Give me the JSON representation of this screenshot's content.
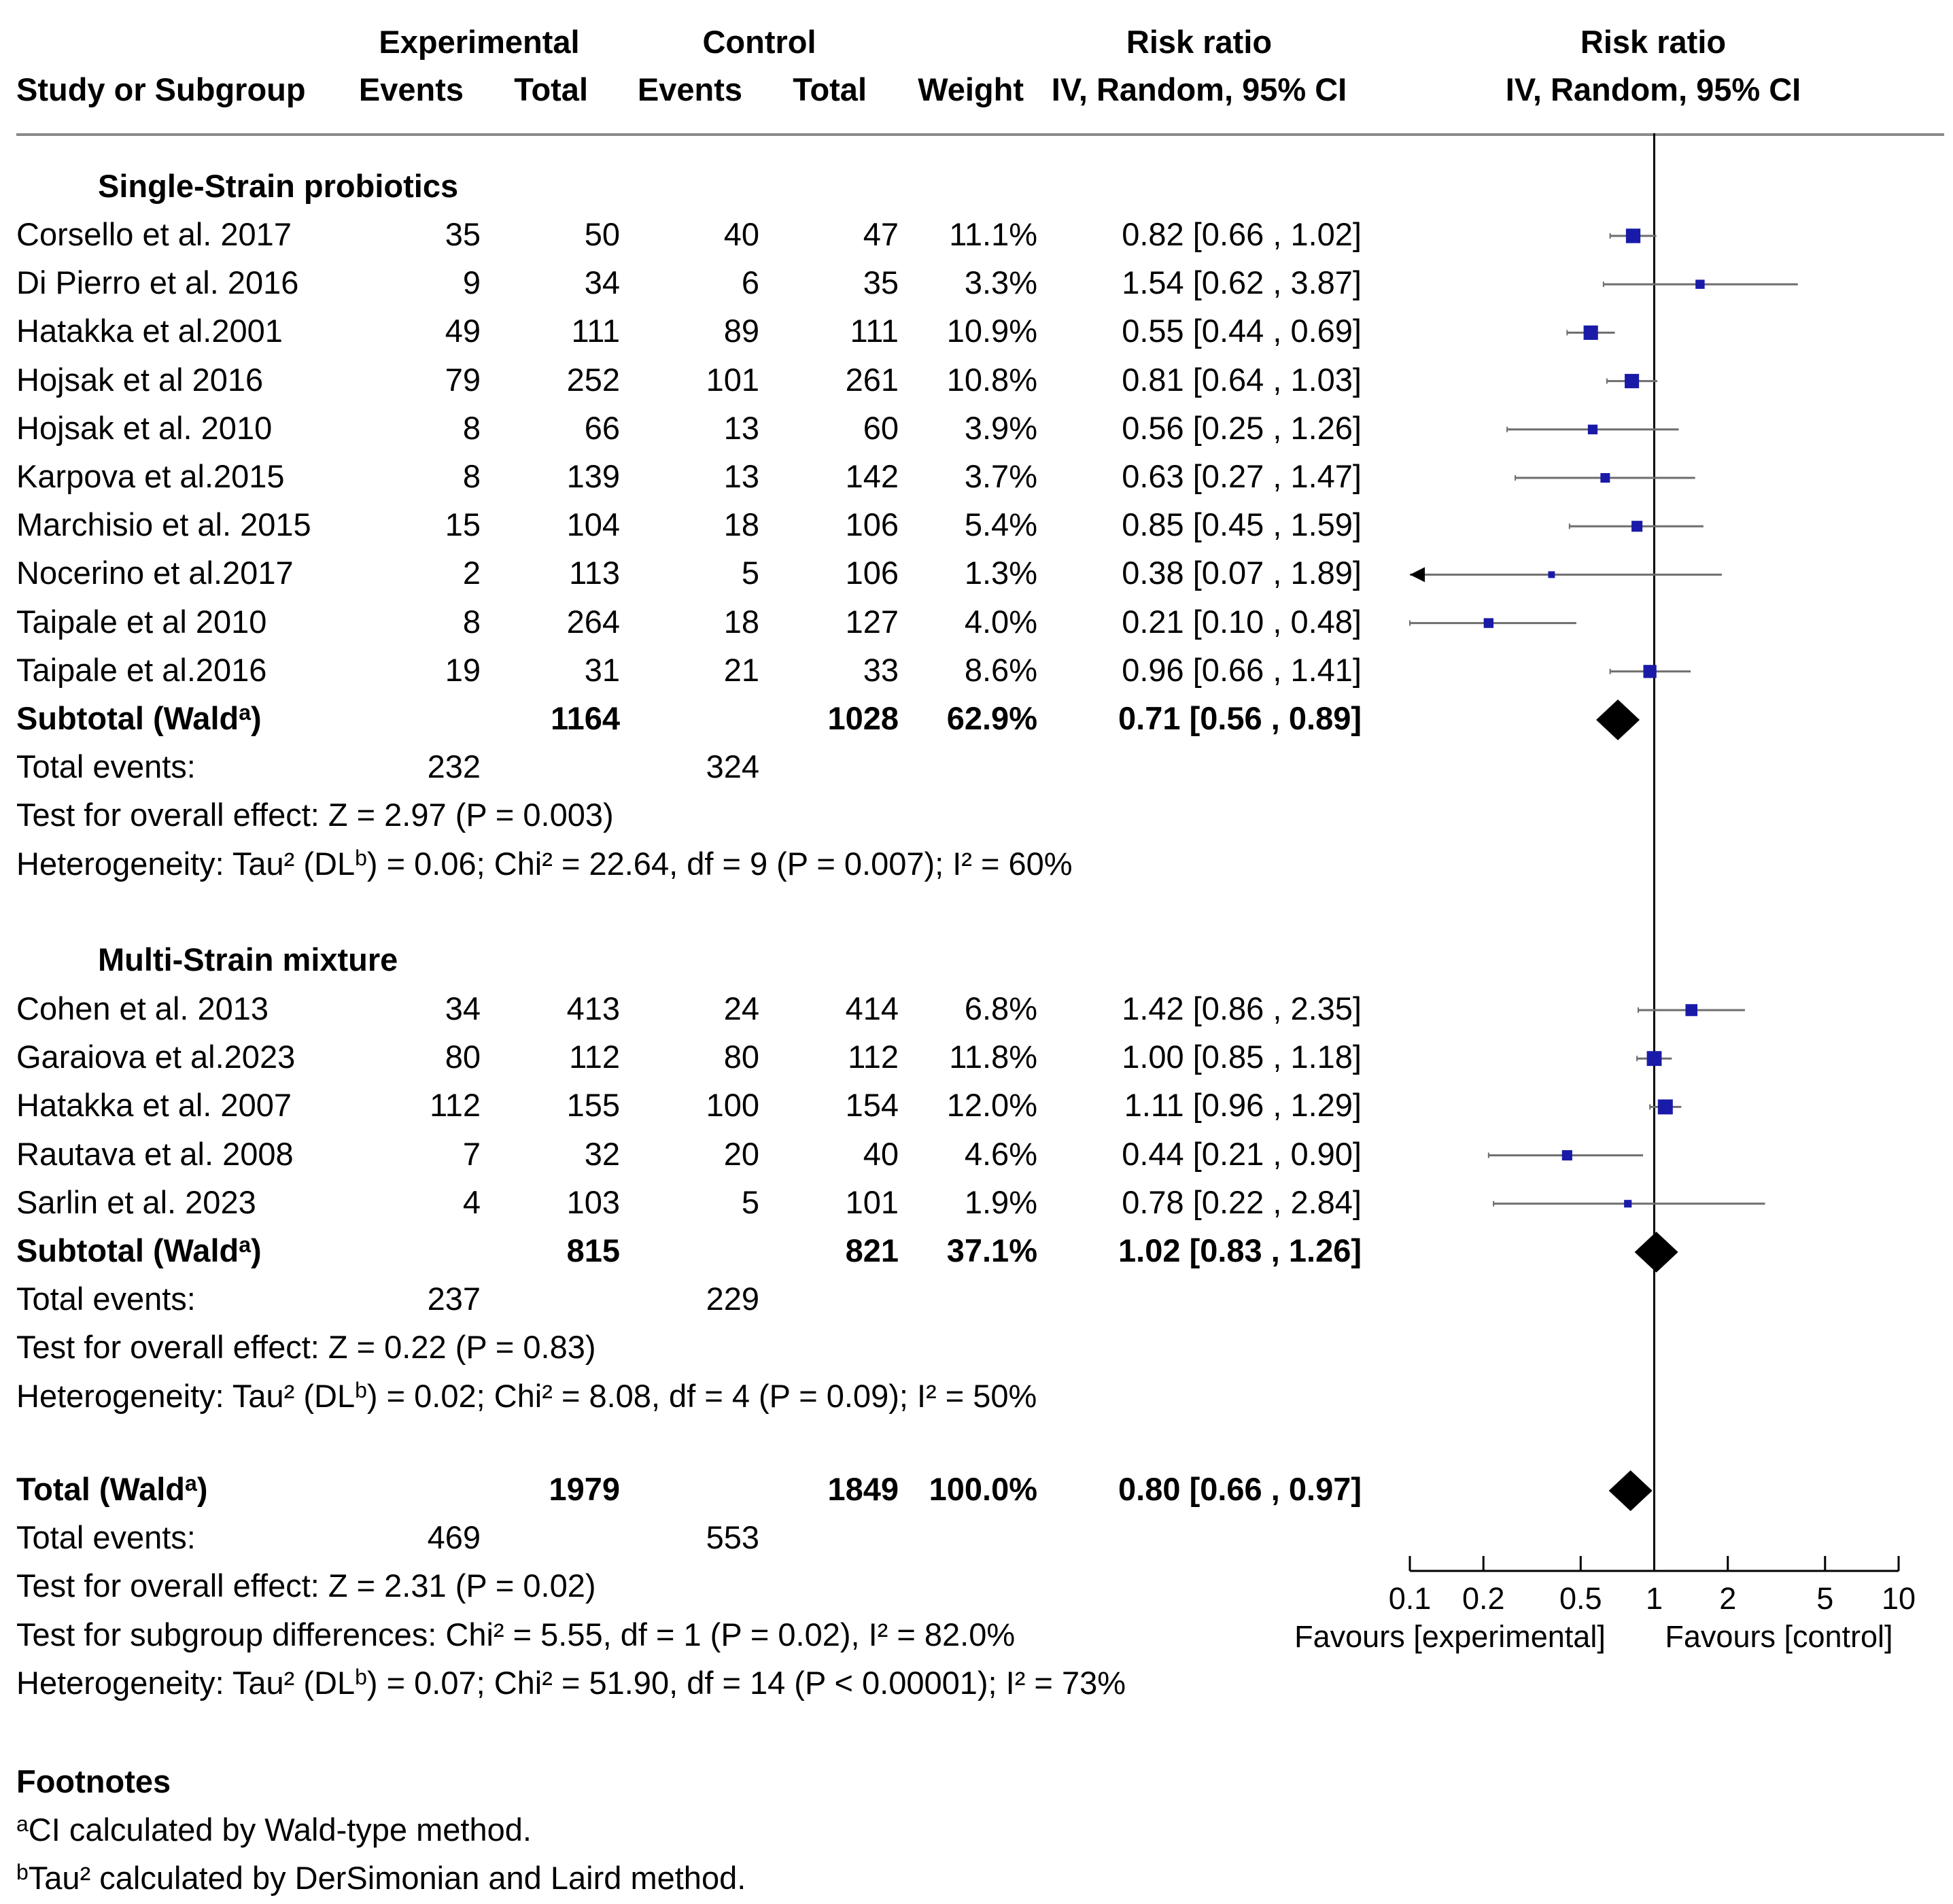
{
  "header": {
    "experimental": "Experimental",
    "control": "Control",
    "rr_group": "Risk ratio",
    "study": "Study or Subgroup",
    "events": "Events",
    "total": "Total",
    "events2": "Events",
    "total2": "Total",
    "weight": "Weight",
    "method": "IV, Random, 95% CI",
    "plot_title": "Risk ratio",
    "plot_method": "IV, Random, 95% CI"
  },
  "groups": [
    {
      "name": "Single-Strain probiotics",
      "rows": [
        {
          "study": "Corsello et al. 2017",
          "e_ev": "35",
          "e_tot": "50",
          "c_ev": "40",
          "c_tot": "47",
          "weight": "11.1%",
          "ci": "0.82 [0.66 , 1.02]"
        },
        {
          "study": "Di Pierro et al. 2016",
          "e_ev": "9",
          "e_tot": "34",
          "c_ev": "6",
          "c_tot": "35",
          "weight": "3.3%",
          "ci": "1.54 [0.62 , 3.87]"
        },
        {
          "study": "Hatakka et al.2001",
          "e_ev": "49",
          "e_tot": "111",
          "c_ev": "89",
          "c_tot": "111",
          "weight": "10.9%",
          "ci": "0.55 [0.44 , 0.69]"
        },
        {
          "study": "Hojsak et al 2016",
          "e_ev": "79",
          "e_tot": "252",
          "c_ev": "101",
          "c_tot": "261",
          "weight": "10.8%",
          "ci": "0.81 [0.64 , 1.03]"
        },
        {
          "study": "Hojsak et al. 2010",
          "e_ev": "8",
          "e_tot": "66",
          "c_ev": "13",
          "c_tot": "60",
          "weight": "3.9%",
          "ci": "0.56 [0.25 , 1.26]"
        },
        {
          "study": "Karpova et al.2015",
          "e_ev": "8",
          "e_tot": "139",
          "c_ev": "13",
          "c_tot": "142",
          "weight": "3.7%",
          "ci": "0.63 [0.27 , 1.47]"
        },
        {
          "study": "Marchisio et al. 2015",
          "e_ev": "15",
          "e_tot": "104",
          "c_ev": "18",
          "c_tot": "106",
          "weight": "5.4%",
          "ci": "0.85 [0.45 , 1.59]"
        },
        {
          "study": "Nocerino et al.2017",
          "e_ev": "2",
          "e_tot": "113",
          "c_ev": "5",
          "c_tot": "106",
          "weight": "1.3%",
          "ci": "0.38 [0.07 , 1.89]"
        },
        {
          "study": "Taipale et al 2010",
          "e_ev": "8",
          "e_tot": "264",
          "c_ev": "18",
          "c_tot": "127",
          "weight": "4.0%",
          "ci": "0.21 [0.10 , 0.48]"
        },
        {
          "study": "Taipale et al.2016",
          "e_ev": "19",
          "e_tot": "31",
          "c_ev": "21",
          "c_tot": "33",
          "weight": "8.6%",
          "ci": "0.96 [0.66 , 1.41]"
        }
      ],
      "subtotal": {
        "label": "Subtotal (Wald",
        "sup": "a",
        "close": ")",
        "e_tot": "1164",
        "c_tot": "1028",
        "weight": "62.9%",
        "ci": "0.71 [0.56 , 0.89]"
      },
      "total_events": {
        "label": "Total events:",
        "e": "232",
        "c": "324"
      },
      "overall": "Test for overall effect: Z = 2.97 (P = 0.003)",
      "het": {
        "a": "Heterogeneity: Tau² (DL",
        "sup": "b",
        "b": ") = 0.06; Chi² = 22.64, df = 9 (P = 0.007); I² = 60%"
      }
    },
    {
      "name": "Multi-Strain mixture",
      "rows": [
        {
          "study": "Cohen et al. 2013",
          "e_ev": "34",
          "e_tot": "413",
          "c_ev": "24",
          "c_tot": "414",
          "weight": "6.8%",
          "ci": "1.42 [0.86 , 2.35]"
        },
        {
          "study": "Garaiova et al.2023",
          "e_ev": "80",
          "e_tot": "112",
          "c_ev": "80",
          "c_tot": "112",
          "weight": "11.8%",
          "ci": "1.00 [0.85 , 1.18]"
        },
        {
          "study": "Hatakka et al. 2007",
          "e_ev": "112",
          "e_tot": "155",
          "c_ev": "100",
          "c_tot": "154",
          "weight": "12.0%",
          "ci": "1.11 [0.96 , 1.29]"
        },
        {
          "study": "Rautava et al. 2008",
          "e_ev": "7",
          "e_tot": "32",
          "c_ev": "20",
          "c_tot": "40",
          "weight": "4.6%",
          "ci": "0.44 [0.21 , 0.90]"
        },
        {
          "study": "Sarlin et al. 2023",
          "e_ev": "4",
          "e_tot": "103",
          "c_ev": "5",
          "c_tot": "101",
          "weight": "1.9%",
          "ci": "0.78 [0.22 , 2.84]"
        }
      ],
      "subtotal": {
        "label": "Subtotal (Wald",
        "sup": "a",
        "close": ")",
        "e_tot": "815",
        "c_tot": "821",
        "weight": "37.1%",
        "ci": "1.02 [0.83 , 1.26]"
      },
      "total_events": {
        "label": "Total events:",
        "e": "237",
        "c": "229"
      },
      "overall": "Test for overall effect: Z = 0.22 (P = 0.83)",
      "het": {
        "a": "Heterogeneity: Tau² (DL",
        "sup": "b",
        "b": ") = 0.02; Chi² = 8.08, df = 4 (P = 0.09); I² = 50%"
      }
    }
  ],
  "total": {
    "label": "Total (Wald",
    "sup": "a",
    "close": ")",
    "e_tot": "1979",
    "c_tot": "1849",
    "weight": "100.0%",
    "ci": "0.80 [0.66 , 0.97]",
    "total_events": {
      "label": "Total events:",
      "e": "469",
      "c": "553"
    },
    "overall": "Test for overall effect: Z = 2.31 (P = 0.02)",
    "subgroup": "Test for subgroup differences: Chi² = 5.55, df = 1 (P = 0.02), I² = 82.0%",
    "het": {
      "a": "Heterogeneity: Tau² (DL",
      "sup": "b",
      "b": ") = 0.07; Chi² = 51.90, df = 14 (P < 0.00001); I² = 73%"
    }
  },
  "footnotes": {
    "title": "Footnotes",
    "a_sup": "a",
    "a_text": "CI calculated by Wald-type method.",
    "b_sup": "b",
    "b_text": "Tau² calculated by DerSimonian and Laird method."
  },
  "colors": {
    "point": "#1a1aa8",
    "whisker": "#6e6e6e",
    "diamond": "#000000",
    "axis": "#000000"
  },
  "chart_data": {
    "type": "forest",
    "scale": "log",
    "xlim": [
      0.1,
      10
    ],
    "ticks": [
      {
        "value": 0.1,
        "label": "0.1"
      },
      {
        "value": 0.2,
        "label": "0.2"
      },
      {
        "value": 0.5,
        "label": "0.5"
      },
      {
        "value": 1,
        "label": "1"
      },
      {
        "value": 2,
        "label": "2"
      },
      {
        "value": 5,
        "label": "5"
      },
      {
        "value": 10,
        "label": "10"
      }
    ],
    "favours_left": "Favours [experimental]",
    "favours_right": "Favours [control]",
    "studies": [
      {
        "name": "Corsello et al. 2017",
        "rr": 0.82,
        "lo": 0.66,
        "hi": 1.02,
        "weight": 11.1
      },
      {
        "name": "Di Pierro et al. 2016",
        "rr": 1.54,
        "lo": 0.62,
        "hi": 3.87,
        "weight": 3.3
      },
      {
        "name": "Hatakka et al.2001",
        "rr": 0.55,
        "lo": 0.44,
        "hi": 0.69,
        "weight": 10.9
      },
      {
        "name": "Hojsak et al 2016",
        "rr": 0.81,
        "lo": 0.64,
        "hi": 1.03,
        "weight": 10.8
      },
      {
        "name": "Hojsak et al. 2010",
        "rr": 0.56,
        "lo": 0.25,
        "hi": 1.26,
        "weight": 3.9
      },
      {
        "name": "Karpova et al.2015",
        "rr": 0.63,
        "lo": 0.27,
        "hi": 1.47,
        "weight": 3.7
      },
      {
        "name": "Marchisio et al. 2015",
        "rr": 0.85,
        "lo": 0.45,
        "hi": 1.59,
        "weight": 5.4
      },
      {
        "name": "Nocerino et al.2017",
        "rr": 0.38,
        "lo": 0.07,
        "hi": 1.89,
        "weight": 1.3
      },
      {
        "name": "Taipale et al 2010",
        "rr": 0.21,
        "lo": 0.1,
        "hi": 0.48,
        "weight": 4.0
      },
      {
        "name": "Taipale et al.2016",
        "rr": 0.96,
        "lo": 0.66,
        "hi": 1.41,
        "weight": 8.6
      },
      {
        "name": "Cohen et al. 2013",
        "rr": 1.42,
        "lo": 0.86,
        "hi": 2.35,
        "weight": 6.8
      },
      {
        "name": "Garaiova et al.2023",
        "rr": 1.0,
        "lo": 0.85,
        "hi": 1.18,
        "weight": 11.8
      },
      {
        "name": "Hatakka et al. 2007",
        "rr": 1.11,
        "lo": 0.96,
        "hi": 1.29,
        "weight": 12.0
      },
      {
        "name": "Rautava et al. 2008",
        "rr": 0.44,
        "lo": 0.21,
        "hi": 0.9,
        "weight": 4.6
      },
      {
        "name": "Sarlin et al. 2023",
        "rr": 0.78,
        "lo": 0.22,
        "hi": 2.84,
        "weight": 1.9
      }
    ],
    "summaries": [
      {
        "name": "Subtotal Single-Strain probiotics",
        "rr": 0.71,
        "lo": 0.56,
        "hi": 0.89
      },
      {
        "name": "Subtotal Multi-Strain mixture",
        "rr": 1.02,
        "lo": 0.83,
        "hi": 1.26
      },
      {
        "name": "Total",
        "rr": 0.8,
        "lo": 0.66,
        "hi": 0.97
      }
    ]
  }
}
